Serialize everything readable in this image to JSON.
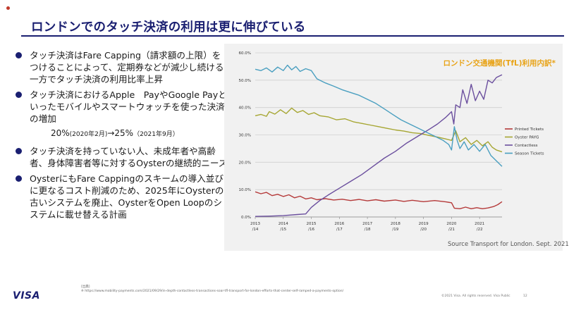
{
  "slide": {
    "title": "ロンドンでのタッチ決済の利用は更に伸びている",
    "bullets": [
      "タッチ決済はFare Capping（請求額の上限）をつけることによって、定期券などが減少し続ける一方でタッチ決済の利用比率上昇",
      "タッチ決済におけるApple　PayやGoogle Payといったモバイルやスマートウォッチを使った決済の増加",
      "タッチ決済を持っていない人、未成年者や高齢者、身体障害者等に対するOysterの継続的ニーズ",
      "OysterにもFare Cappingのスキームの導入並びに更なるコスト削減のため、2025年にOysterの古いシステムを廃止、OysterをOpen Loopのシステムに載せ替える計画"
    ],
    "subline": {
      "v1": "20%",
      "d1": "(2020年2月)",
      "arrow": "→",
      "v2": "25%",
      "d2": "（2021年9月）"
    },
    "brand": "VISA",
    "footnote_label": "[出典]",
    "footnote_url": "※ https://www.mobility-payments.com/2021/09/29/in-depth-contactless-transactions-soar-tfl-transport-for-london-efforts-that-center-self-ramped-a-payments-option/",
    "copyright": "©2021 Visa. All rights reserved. Visa Public",
    "page_number": "12",
    "source": "Source Transport for London. Sept. 2021"
  },
  "chart_data": {
    "type": "line",
    "title": "ロンドン交通機関(TfL)利用内訳*",
    "xlabel": "",
    "ylabel": "",
    "ylim": [
      0,
      60
    ],
    "y_ticks": [
      "0.0%",
      "10.0%",
      "20.0%",
      "30.0%",
      "40.0%",
      "50.0%",
      "60.0%"
    ],
    "x_ticks": [
      "2013\n/14",
      "2014\n/15",
      "2015\n/16",
      "2016\n/17",
      "2017\n/18",
      "2018\n/19",
      "2019\n/20",
      "2020\n/21",
      "2021\n/22"
    ],
    "x_range": [
      0,
      8.8
    ],
    "colors": {
      "Printed Tickets": "#b53a3a",
      "Oyster PAYG": "#a6a632",
      "Contactless": "#6b4f9e",
      "Season Tickets": "#4a9fc0"
    },
    "series": [
      {
        "name": "Printed Tickets",
        "points": [
          [
            0,
            9.2
          ],
          [
            0.2,
            8.5
          ],
          [
            0.4,
            9.0
          ],
          [
            0.6,
            7.8
          ],
          [
            0.8,
            8.3
          ],
          [
            1.0,
            7.5
          ],
          [
            1.2,
            8.1
          ],
          [
            1.4,
            7.0
          ],
          [
            1.6,
            7.6
          ],
          [
            1.8,
            6.6
          ],
          [
            2.0,
            7.0
          ],
          [
            2.2,
            6.3
          ],
          [
            2.5,
            6.7
          ],
          [
            2.8,
            6.2
          ],
          [
            3.1,
            6.5
          ],
          [
            3.4,
            6.0
          ],
          [
            3.7,
            6.4
          ],
          [
            4.0,
            5.9
          ],
          [
            4.3,
            6.3
          ],
          [
            4.6,
            5.8
          ],
          [
            5.0,
            6.2
          ],
          [
            5.3,
            5.7
          ],
          [
            5.6,
            6.1
          ],
          [
            6.0,
            5.6
          ],
          [
            6.4,
            6.0
          ],
          [
            6.8,
            5.5
          ],
          [
            7.0,
            5.2
          ],
          [
            7.1,
            3.2
          ],
          [
            7.3,
            3.0
          ],
          [
            7.5,
            3.6
          ],
          [
            7.7,
            3.0
          ],
          [
            7.9,
            3.4
          ],
          [
            8.1,
            3.0
          ],
          [
            8.3,
            3.3
          ],
          [
            8.5,
            3.8
          ],
          [
            8.65,
            4.5
          ],
          [
            8.8,
            5.6
          ]
        ]
      },
      {
        "name": "Oyster PAYG",
        "points": [
          [
            0,
            37.0
          ],
          [
            0.2,
            37.5
          ],
          [
            0.4,
            36.8
          ],
          [
            0.5,
            38.5
          ],
          [
            0.7,
            37.6
          ],
          [
            0.9,
            39.2
          ],
          [
            1.1,
            37.8
          ],
          [
            1.3,
            39.8
          ],
          [
            1.5,
            38.2
          ],
          [
            1.7,
            38.9
          ],
          [
            1.9,
            37.5
          ],
          [
            2.1,
            38.1
          ],
          [
            2.3,
            37.0
          ],
          [
            2.6,
            36.6
          ],
          [
            2.9,
            35.5
          ],
          [
            3.2,
            35.9
          ],
          [
            3.5,
            34.8
          ],
          [
            3.8,
            34.2
          ],
          [
            4.1,
            33.6
          ],
          [
            4.4,
            33.0
          ],
          [
            4.7,
            32.4
          ],
          [
            5.0,
            31.8
          ],
          [
            5.3,
            31.4
          ],
          [
            5.6,
            30.8
          ],
          [
            5.9,
            30.5
          ],
          [
            6.2,
            29.8
          ],
          [
            6.5,
            29.2
          ],
          [
            6.8,
            28.5
          ],
          [
            7.0,
            28.0
          ],
          [
            7.15,
            31.5
          ],
          [
            7.3,
            27.5
          ],
          [
            7.5,
            29.0
          ],
          [
            7.7,
            26.5
          ],
          [
            7.9,
            28.0
          ],
          [
            8.1,
            26.0
          ],
          [
            8.3,
            27.5
          ],
          [
            8.45,
            25.5
          ],
          [
            8.6,
            24.5
          ],
          [
            8.8,
            23.8
          ]
        ]
      },
      {
        "name": "Contactless",
        "points": [
          [
            0,
            0.2
          ],
          [
            0.5,
            0.3
          ],
          [
            1.0,
            0.5
          ],
          [
            1.5,
            0.9
          ],
          [
            1.8,
            1.1
          ],
          [
            2.0,
            3.5
          ],
          [
            2.3,
            6.0
          ],
          [
            2.6,
            8.0
          ],
          [
            3.0,
            10.5
          ],
          [
            3.4,
            13.0
          ],
          [
            3.8,
            15.5
          ],
          [
            4.2,
            18.5
          ],
          [
            4.6,
            21.5
          ],
          [
            5.0,
            24.0
          ],
          [
            5.4,
            27.0
          ],
          [
            5.8,
            29.5
          ],
          [
            6.2,
            32.0
          ],
          [
            6.5,
            34.0
          ],
          [
            6.8,
            36.5
          ],
          [
            7.0,
            38.5
          ],
          [
            7.08,
            34.0
          ],
          [
            7.15,
            41.0
          ],
          [
            7.3,
            40.0
          ],
          [
            7.4,
            46.5
          ],
          [
            7.55,
            41.5
          ],
          [
            7.7,
            48.5
          ],
          [
            7.85,
            42.5
          ],
          [
            8.0,
            46.0
          ],
          [
            8.15,
            43.0
          ],
          [
            8.3,
            50.0
          ],
          [
            8.45,
            49.0
          ],
          [
            8.6,
            51.0
          ],
          [
            8.8,
            52.0
          ]
        ]
      },
      {
        "name": "Season Tickets",
        "points": [
          [
            0,
            54.0
          ],
          [
            0.2,
            53.5
          ],
          [
            0.4,
            54.5
          ],
          [
            0.6,
            53.0
          ],
          [
            0.8,
            54.8
          ],
          [
            1.0,
            53.5
          ],
          [
            1.15,
            55.5
          ],
          [
            1.3,
            53.8
          ],
          [
            1.45,
            55.0
          ],
          [
            1.6,
            53.2
          ],
          [
            1.8,
            54.2
          ],
          [
            2.0,
            53.5
          ],
          [
            2.2,
            50.5
          ],
          [
            2.5,
            49.0
          ],
          [
            2.8,
            47.8
          ],
          [
            3.1,
            46.5
          ],
          [
            3.4,
            45.5
          ],
          [
            3.7,
            44.5
          ],
          [
            4.0,
            43.0
          ],
          [
            4.3,
            41.5
          ],
          [
            4.6,
            39.5
          ],
          [
            4.9,
            37.5
          ],
          [
            5.2,
            35.5
          ],
          [
            5.5,
            34.0
          ],
          [
            5.8,
            32.5
          ],
          [
            6.1,
            31.0
          ],
          [
            6.4,
            29.5
          ],
          [
            6.7,
            28.0
          ],
          [
            6.9,
            26.5
          ],
          [
            7.0,
            24.5
          ],
          [
            7.1,
            33.0
          ],
          [
            7.2,
            28.0
          ],
          [
            7.3,
            25.0
          ],
          [
            7.45,
            27.5
          ],
          [
            7.6,
            24.5
          ],
          [
            7.8,
            26.5
          ],
          [
            8.0,
            24.0
          ],
          [
            8.2,
            26.5
          ],
          [
            8.4,
            22.5
          ],
          [
            8.6,
            20.5
          ],
          [
            8.8,
            18.5
          ]
        ]
      }
    ]
  }
}
